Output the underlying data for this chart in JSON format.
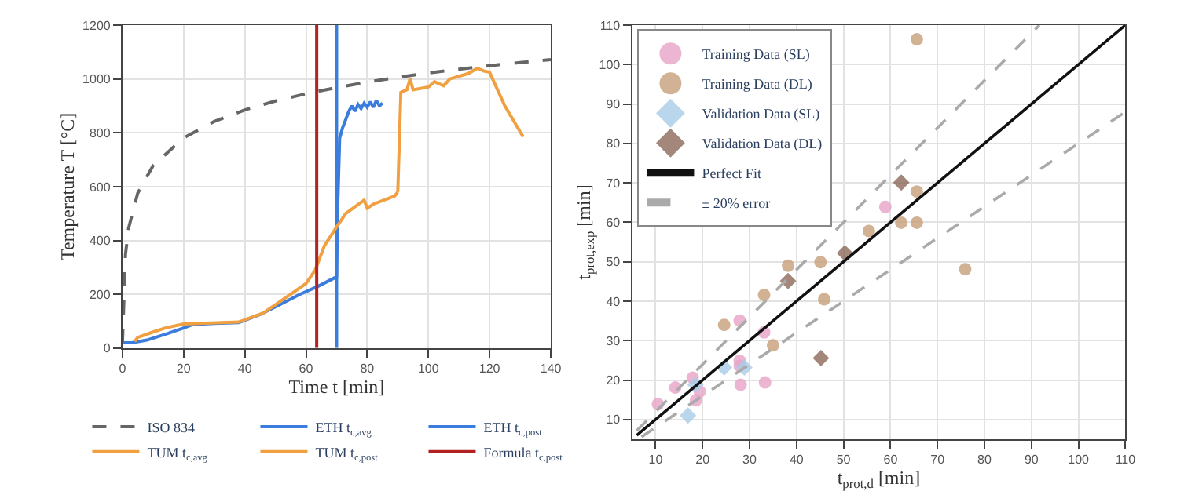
{
  "chart_data": [
    {
      "type": "line",
      "xlabel": "Time t [min]",
      "ylabel": "Temperature T [°C]",
      "xlim": [
        0,
        140
      ],
      "ylim": [
        0,
        1200
      ],
      "xticks": [
        0,
        20,
        40,
        60,
        80,
        100,
        120,
        140
      ],
      "yticks": [
        0,
        200,
        400,
        600,
        800,
        1000,
        1200
      ],
      "grid": true,
      "legend": "bottom",
      "series": [
        {
          "name": "ISO 834",
          "color": "#666666",
          "line_style": "dashed",
          "x": [
            0,
            1,
            2,
            5,
            10,
            20,
            30,
            40,
            50,
            60,
            70,
            80,
            90,
            100,
            110,
            120,
            130,
            140
          ],
          "values": [
            20,
            349,
            445,
            576,
            678,
            781,
            842,
            885,
            918,
            945,
            968,
            988,
            1006,
            1022,
            1036,
            1049,
            1061,
            1072
          ]
        },
        {
          "name": "ETH t$_{c,avg}$",
          "color": "#3b7ddd",
          "x": [
            0,
            3,
            8,
            15,
            20,
            23,
            30,
            38,
            45,
            52,
            58,
            64,
            70,
            70.3,
            71,
            72,
            74,
            75,
            76,
            77,
            78,
            79,
            80,
            81,
            82,
            83,
            84,
            85
          ],
          "values": [
            20,
            20,
            30,
            55,
            75,
            88,
            92,
            95,
            125,
            165,
            200,
            230,
            265,
            500,
            780,
            820,
            880,
            900,
            880,
            905,
            890,
            910,
            895,
            915,
            895,
            920,
            900,
            910
          ]
        },
        {
          "name": "ETH t$_{c,post}$",
          "color": "#3b7ddd",
          "x": [
            70,
            70
          ],
          "values": [
            0,
            1200
          ]
        },
        {
          "name": "TUM t$_{c,avg}$",
          "color": "#f0a040",
          "x": [
            4,
            5,
            10,
            14,
            20,
            25,
            38,
            46,
            55,
            60,
            63,
            66,
            70,
            73,
            76,
            79,
            80,
            82,
            89,
            90
          ],
          "values": [
            25,
            40,
            60,
            75,
            90,
            92,
            97,
            130,
            200,
            240,
            290,
            380,
            450,
            500,
            525,
            550,
            520,
            535,
            565,
            580
          ]
        },
        {
          "name": "TUM t$_{c,post}$",
          "color": "#f0a040",
          "x": [
            90,
            91,
            93,
            94,
            95,
            100,
            102,
            105,
            107,
            113,
            116,
            118,
            120,
            125,
            131
          ],
          "values": [
            580,
            950,
            960,
            1000,
            960,
            970,
            990,
            975,
            1000,
            1020,
            1040,
            1030,
            1025,
            900,
            785
          ]
        },
        {
          "name": "Formula t$_{c,post}$",
          "color": "#b22222",
          "x": [
            63.5,
            63.5
          ],
          "values": [
            0,
            1200
          ]
        }
      ]
    },
    {
      "type": "scatter",
      "xlabel": "t$_{prot,d}$ [min]",
      "ylabel": "t$_{prot,exp}$ [min]",
      "xlim": [
        5,
        110
      ],
      "ylim": [
        5,
        110
      ],
      "xticks": [
        10,
        20,
        30,
        40,
        50,
        60,
        70,
        80,
        90,
        100,
        110
      ],
      "yticks": [
        10,
        20,
        30,
        40,
        50,
        60,
        70,
        80,
        90,
        100,
        110
      ],
      "grid": true,
      "legend": "top left",
      "series": [
        {
          "name": "Training Data (SL)",
          "color": "#e8a5c8",
          "marker": "circle",
          "x": [
            10.5,
            14.2,
            17.9,
            18.6,
            19.4,
            27.9,
            27.9,
            27.9,
            28.1,
            33.1,
            33.3,
            58.9
          ],
          "values": [
            13.9,
            18.1,
            20.6,
            14.9,
            17.1,
            35.1,
            24.9,
            23.6,
            18.8,
            32.1,
            19.4,
            63.9
          ]
        },
        {
          "name": "Training Data (DL)",
          "color": "#c8a07a",
          "marker": "circle",
          "x": [
            65.6,
            24.6,
            33.1,
            35.0,
            38.2,
            45.1,
            45.9,
            55.4,
            62.3,
            65.6,
            65.6,
            75.9
          ],
          "values": [
            106.4,
            34.0,
            41.6,
            28.8,
            49.0,
            49.9,
            40.5,
            57.8,
            59.9,
            67.8,
            59.9,
            48.1
          ]
        },
        {
          "name": "Validation Data (SL)",
          "color": "#a8cde8",
          "marker": "diamond",
          "x": [
            16.9,
            18.5,
            24.6,
            28.9
          ],
          "values": [
            11.0,
            18.8,
            23.2,
            23.2
          ]
        },
        {
          "name": "Validation Data (DL)",
          "color": "#8b6a5a",
          "marker": "diamond",
          "x": [
            38.2,
            50.3,
            62.3,
            45.2
          ],
          "values": [
            45.1,
            52.2,
            70.1,
            25.6
          ]
        },
        {
          "name": "Perfect Fit",
          "type": "line",
          "color": "#111111",
          "x": [
            6,
            110
          ],
          "values": [
            6,
            110
          ]
        },
        {
          "name": "± 20% error",
          "type": "line",
          "color": "#aaaaaa",
          "line_style": "dashed",
          "x": [
            6,
            91.7,
            null,
            7,
            110
          ],
          "values": [
            7.2,
            110,
            null,
            5.6,
            88
          ]
        }
      ]
    }
  ]
}
